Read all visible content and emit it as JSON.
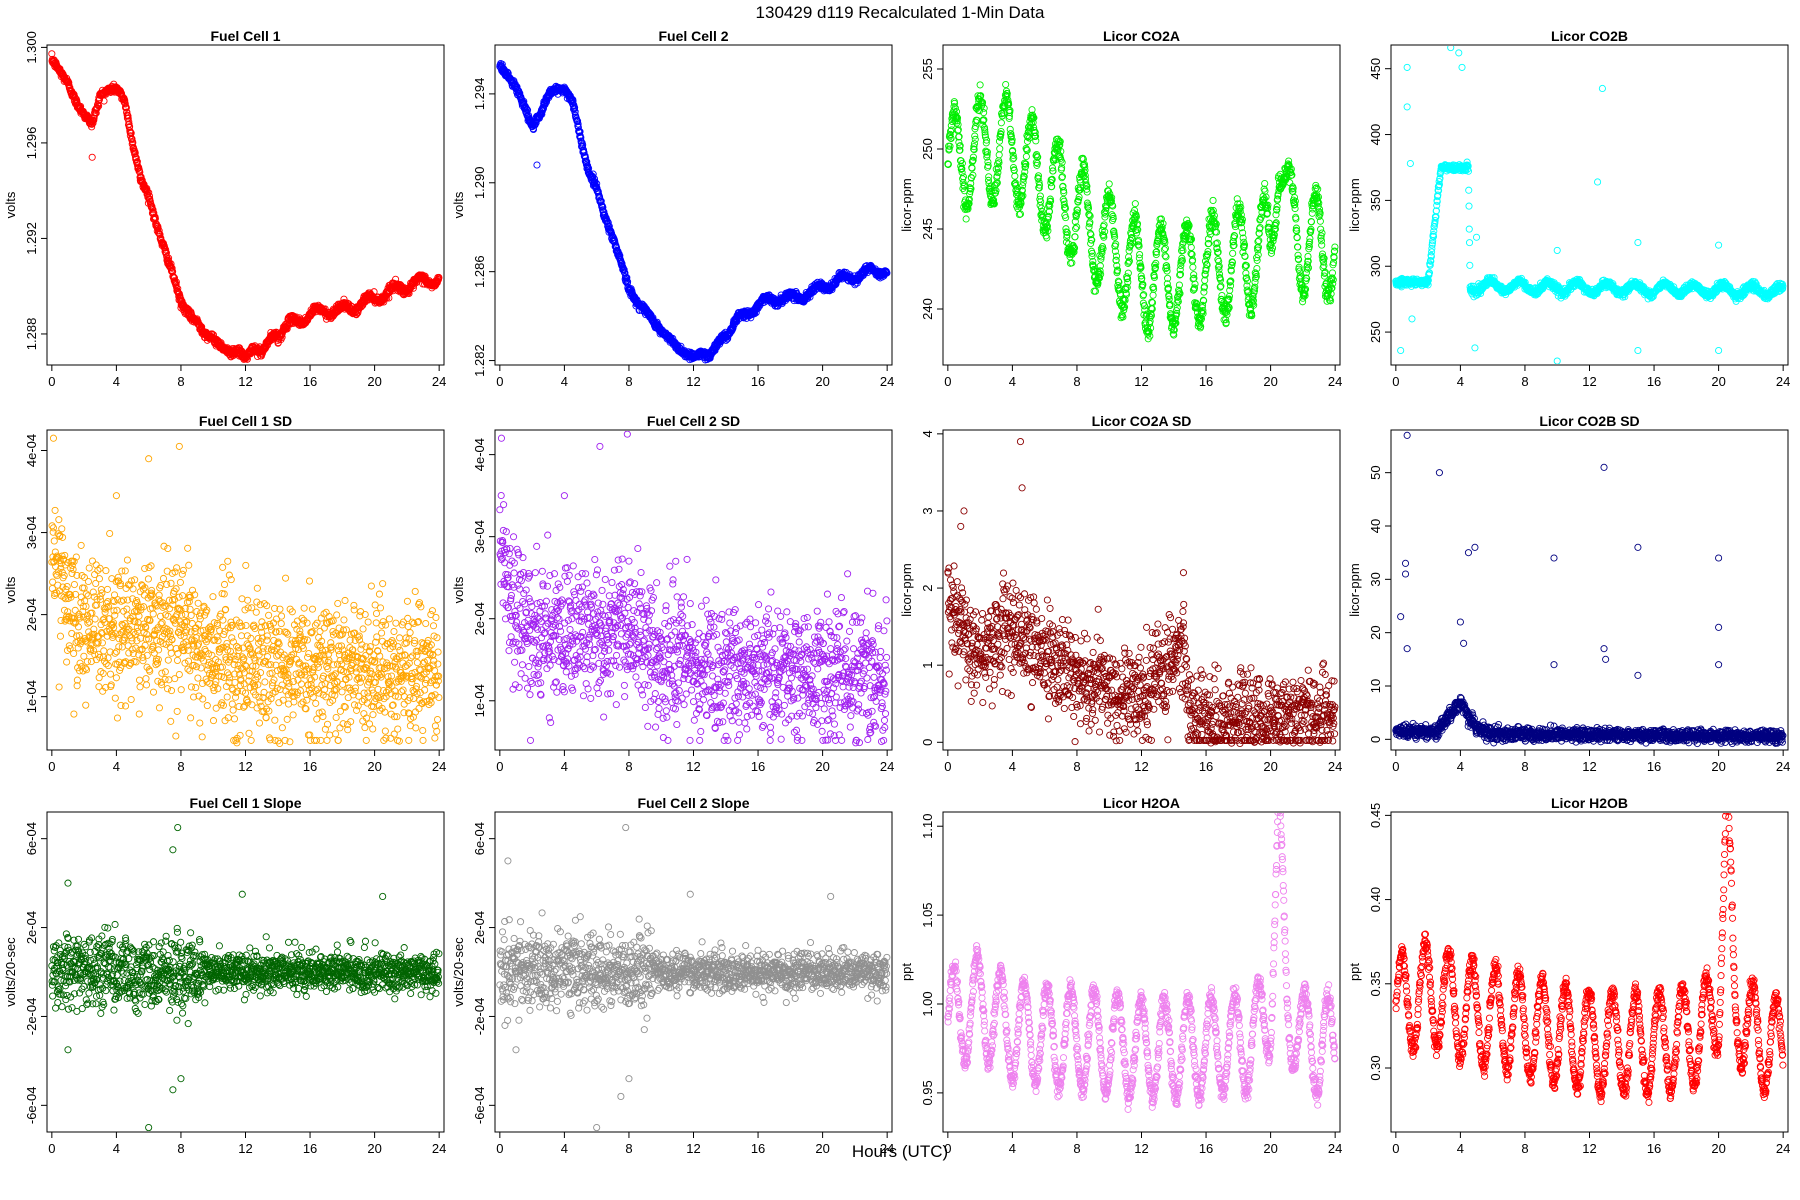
{
  "figure": {
    "title": "130429   d119   Recalculated 1-Min Data",
    "xlabel": "Hours (UTC)"
  },
  "chart_data": [
    {
      "type": "scatter",
      "title": "Fuel Cell 1",
      "ylabel": "volts",
      "color": "#ff0000",
      "xlim": [
        -0.3,
        24.3
      ],
      "ylim": [
        1.2867,
        1.3001
      ],
      "xticks": [
        0,
        4,
        8,
        12,
        16,
        20,
        24
      ],
      "yticks": [
        1.288,
        1.292,
        1.296,
        1.3
      ],
      "ytick_labels": [
        "1.288",
        "1.292",
        "1.296",
        "1.300"
      ],
      "profile": {
        "x": [
          0,
          0.5,
          1,
          1.5,
          2,
          2.5,
          3,
          3.5,
          4,
          4.5,
          5,
          5.5,
          6,
          6.5,
          7,
          7.5,
          8,
          8.5,
          9,
          9.5,
          10,
          10.5,
          11,
          11.5,
          12,
          12.5,
          13,
          13.5,
          14,
          15,
          16,
          17,
          18,
          19,
          20,
          21,
          22,
          23,
          24
        ],
        "y": [
          1.2995,
          1.299,
          1.2985,
          1.2977,
          1.2972,
          1.2968,
          1.298,
          1.2982,
          1.2983,
          1.2978,
          1.296,
          1.2945,
          1.2938,
          1.2925,
          1.2915,
          1.2905,
          1.2893,
          1.2888,
          1.2885,
          1.288,
          1.2878,
          1.2875,
          1.2872,
          1.2873,
          1.287,
          1.2874,
          1.2872,
          1.2878,
          1.288,
          1.2885,
          1.2888,
          1.289,
          1.289,
          1.2892,
          1.2895,
          1.2898,
          1.29,
          1.2902,
          1.2903
        ],
        "noise": 0.00012,
        "osc_amp": 0.0002,
        "osc_period": 1.6,
        "osc_start": 14,
        "outliers": [
          [
            2.5,
            1.2954
          ]
        ]
      }
    },
    {
      "type": "scatter",
      "title": "Fuel Cell 2",
      "ylabel": "volts",
      "color": "#0000ff",
      "xlim": [
        -0.3,
        24.3
      ],
      "ylim": [
        1.2818,
        1.2962
      ],
      "xticks": [
        0,
        4,
        8,
        12,
        16,
        20,
        24
      ],
      "yticks": [
        1.282,
        1.286,
        1.29,
        1.294
      ],
      "ytick_labels": [
        "1.282",
        "1.286",
        "1.290",
        "1.294"
      ],
      "profile": {
        "x": [
          0,
          0.5,
          1,
          1.5,
          2,
          2.5,
          3,
          3.5,
          4,
          4.5,
          5,
          5.5,
          6,
          6.5,
          7,
          7.5,
          8,
          8.5,
          9,
          9.5,
          10,
          10.5,
          11,
          11.5,
          12,
          12.5,
          13,
          13.5,
          14,
          15,
          16,
          17,
          18,
          19,
          20,
          21,
          22,
          23,
          24
        ],
        "y": [
          1.2953,
          1.2948,
          1.2943,
          1.2935,
          1.2925,
          1.293,
          1.294,
          1.2942,
          1.2942,
          1.2937,
          1.292,
          1.2905,
          1.2898,
          1.2885,
          1.2875,
          1.2865,
          1.2852,
          1.2846,
          1.2843,
          1.2838,
          1.2833,
          1.283,
          1.2826,
          1.2823,
          1.2822,
          1.2823,
          1.2822,
          1.2828,
          1.2832,
          1.284,
          1.2845,
          1.2848,
          1.2848,
          1.285,
          1.2853,
          1.2856,
          1.2858,
          1.286,
          1.2861
        ],
        "noise": 0.00012,
        "osc_amp": 0.0002,
        "osc_period": 1.6,
        "osc_start": 14,
        "outliers": [
          [
            2.3,
            1.2908
          ]
        ]
      }
    },
    {
      "type": "scatter",
      "title": "Licor CO2A",
      "ylabel": "licor-ppm",
      "color": "#00ee00",
      "xlim": [
        -0.3,
        24.3
      ],
      "ylim": [
        236.5,
        256.5
      ],
      "xticks": [
        0,
        4,
        8,
        12,
        16,
        20,
        24
      ],
      "yticks": [
        240,
        245,
        250,
        255
      ],
      "ytick_labels": [
        "240",
        "245",
        "250",
        "255"
      ],
      "profile": {
        "x": [
          0,
          2,
          4,
          6,
          8,
          10,
          12,
          14,
          16,
          18,
          20,
          20.5,
          21,
          22,
          24
        ],
        "y": [
          249,
          250,
          250,
          248,
          246,
          244,
          242,
          242,
          242.5,
          243,
          244,
          251,
          246,
          244,
          244
        ],
        "noise": 0.5,
        "osc_amp": 3.2,
        "osc_period": 1.6,
        "osc_start": 0,
        "outliers": []
      }
    },
    {
      "type": "scatter",
      "title": "Licor CO2B",
      "ylabel": "licor-ppm",
      "color": "#00ffff",
      "xlim": [
        -0.3,
        24.3
      ],
      "ylim": [
        225,
        468
      ],
      "xticks": [
        0,
        4,
        8,
        12,
        16,
        20,
        24
      ],
      "yticks": [
        250,
        300,
        350,
        400,
        450
      ],
      "ytick_labels": [
        "250",
        "300",
        "350",
        "400",
        "450"
      ],
      "profile": {
        "x": [
          0,
          2,
          2.8,
          4.5,
          4.6,
          24
        ],
        "y": [
          288,
          288,
          375,
          375,
          285,
          281
        ],
        "noise": 2,
        "osc_amp": 4,
        "osc_period": 1.8,
        "osc_start": 4.6,
        "outliers": [
          [
            0.3,
            236
          ],
          [
            0.7,
            451
          ],
          [
            0.7,
            421
          ],
          [
            0.9,
            378
          ],
          [
            3.4,
            466
          ],
          [
            3.9,
            462
          ],
          [
            4.1,
            451
          ],
          [
            12.8,
            435
          ],
          [
            12.5,
            364
          ],
          [
            10,
            228
          ],
          [
            10,
            312
          ],
          [
            15,
            236
          ],
          [
            15,
            318
          ],
          [
            20,
            236
          ],
          [
            20,
            316
          ],
          [
            4.9,
            238
          ],
          [
            5,
            322
          ],
          [
            0.5,
            290
          ],
          [
            1,
            260
          ]
        ]
      }
    },
    {
      "type": "scatter",
      "title": "Fuel Cell 1 SD",
      "ylabel": "volts",
      "color": "#ffa500",
      "xlim": [
        -0.3,
        24.3
      ],
      "ylim": [
        3.5e-05,
        0.000425
      ],
      "xticks": [
        0,
        4,
        8,
        12,
        16,
        20,
        24
      ],
      "yticks": [
        0.0001,
        0.0002,
        0.0003,
        0.0004
      ],
      "ytick_labels": [
        "1e-04",
        "2e-04",
        "3e-04",
        "4e-04"
      ],
      "profile": {
        "x": [
          0,
          1,
          2,
          4,
          8,
          9.5,
          12,
          24
        ],
        "y": [
          0.00028,
          0.00021,
          0.00018,
          0.00018,
          0.00019,
          0.00015,
          0.00014,
          0.00013
        ],
        "noise": 4e-05,
        "osc_amp": 0,
        "osc_period": 1,
        "osc_start": 24,
        "outliers": [
          [
            0.1,
            0.000415
          ],
          [
            6,
            0.00039
          ],
          [
            7.9,
            0.000405
          ],
          [
            4,
            0.000345
          ],
          [
            10.9,
            0.000265
          ],
          [
            20.3,
            0.000225
          ]
        ]
      }
    },
    {
      "type": "scatter",
      "title": "Fuel Cell 2 SD",
      "ylabel": "volts",
      "color": "#a020f0",
      "xlim": [
        -0.3,
        24.3
      ],
      "ylim": [
        4e-05,
        0.00043
      ],
      "xticks": [
        0,
        4,
        8,
        12,
        16,
        20,
        24
      ],
      "yticks": [
        0.0001,
        0.0002,
        0.0003,
        0.0004
      ],
      "ytick_labels": [
        "1e-04",
        "2e-04",
        "3e-04",
        "4e-04"
      ],
      "profile": {
        "x": [
          0,
          1,
          2,
          4,
          8,
          9.5,
          12,
          24
        ],
        "y": [
          0.00029,
          0.00021,
          0.00018,
          0.00018,
          0.00019,
          0.00015,
          0.00014,
          0.00013
        ],
        "noise": 4e-05,
        "osc_amp": 0,
        "osc_period": 1,
        "osc_start": 24,
        "outliers": [
          [
            0.1,
            0.00042
          ],
          [
            6.2,
            0.00041
          ],
          [
            7.9,
            0.000425
          ],
          [
            4,
            0.00035
          ],
          [
            10.9,
            0.00027
          ],
          [
            20.3,
            0.00023
          ]
        ]
      }
    },
    {
      "type": "scatter",
      "title": "Licor CO2A SD",
      "ylabel": "licor-ppm",
      "color": "#8b0000",
      "xlim": [
        -0.3,
        24.3
      ],
      "ylim": [
        -0.1,
        4.05
      ],
      "xticks": [
        0,
        4,
        8,
        12,
        16,
        20,
        24
      ],
      "yticks": [
        0,
        1,
        2,
        3,
        4
      ],
      "ytick_labels": [
        "0",
        "1",
        "2",
        "3",
        "4"
      ],
      "profile": {
        "x": [
          0,
          1,
          2,
          4,
          5,
          8,
          12,
          13,
          14.5,
          15,
          16,
          24
        ],
        "y": [
          1.8,
          1.5,
          1.2,
          1.5,
          1.3,
          0.8,
          0.6,
          0.8,
          1.2,
          0.4,
          0.3,
          0.35
        ],
        "noise": 0.3,
        "osc_amp": 0,
        "osc_period": 1,
        "osc_start": 24,
        "outliers": [
          [
            4.5,
            3.9
          ],
          [
            1,
            3
          ],
          [
            4.6,
            3.3
          ],
          [
            14.6,
            2.2
          ],
          [
            0.8,
            2.8
          ]
        ]
      }
    },
    {
      "type": "scatter",
      "title": "Licor CO2B SD",
      "ylabel": "licor-ppm",
      "color": "#000080",
      "xlim": [
        -0.3,
        24.3
      ],
      "ylim": [
        -2,
        58
      ],
      "xticks": [
        0,
        4,
        8,
        12,
        16,
        20,
        24
      ],
      "yticks": [
        0,
        10,
        20,
        30,
        40,
        50
      ],
      "ytick_labels": [
        "0",
        "10",
        "20",
        "30",
        "40",
        "50"
      ],
      "profile": {
        "x": [
          0,
          2.5,
          3,
          4,
          5,
          6,
          24
        ],
        "y": [
          1.5,
          1.5,
          3,
          7,
          2,
          1,
          0.5
        ],
        "noise": 0.6,
        "osc_amp": 0,
        "osc_period": 1,
        "osc_start": 24,
        "outliers": [
          [
            0.7,
            57
          ],
          [
            2.7,
            50
          ],
          [
            12.9,
            51
          ],
          [
            0.3,
            23
          ],
          [
            0.6,
            33
          ],
          [
            0.6,
            31
          ],
          [
            0.7,
            17
          ],
          [
            4,
            22
          ],
          [
            4.2,
            18
          ],
          [
            4.9,
            36
          ],
          [
            4.5,
            35
          ],
          [
            9.8,
            34
          ],
          [
            15,
            36
          ],
          [
            20,
            34
          ],
          [
            20,
            21
          ],
          [
            20,
            14
          ],
          [
            12.9,
            17
          ],
          [
            13,
            15
          ],
          [
            9.8,
            14
          ],
          [
            15,
            12
          ]
        ]
      }
    },
    {
      "type": "scatter",
      "title": "Fuel Cell 1 Slope",
      "ylabel": "volts/20-sec",
      "color": "#006400",
      "xlim": [
        -0.3,
        24.3
      ],
      "ylim": [
        -0.00072,
        0.00072
      ],
      "xticks": [
        0,
        4,
        8,
        12,
        16,
        20,
        24
      ],
      "yticks": [
        -0.0006,
        -0.0002,
        0.0002,
        0.0006
      ],
      "ytick_labels": [
        "-6e-04",
        "-2e-04",
        "2e-04",
        "6e-04"
      ],
      "profile": {
        "x": [
          0,
          9,
          9.5,
          24
        ],
        "y": [
          0,
          0,
          0,
          0
        ],
        "noise": 0.00012,
        "noise_late": 6e-05,
        "osc_amp": 0,
        "osc_period": 1,
        "osc_start": 24,
        "outliers": [
          [
            7.8,
            0.00065
          ],
          [
            6,
            -0.0007
          ],
          [
            7.5,
            0.00055
          ],
          [
            7.5,
            -0.00053
          ],
          [
            1,
            0.0004
          ],
          [
            11.8,
            0.00035
          ],
          [
            20.5,
            0.00034
          ],
          [
            1,
            -0.00035
          ],
          [
            8,
            -0.00048
          ]
        ]
      }
    },
    {
      "type": "scatter",
      "title": "Fuel Cell 2 Slope",
      "ylabel": "volts/20-sec",
      "color": "#909090",
      "xlim": [
        -0.3,
        24.3
      ],
      "ylim": [
        -0.00072,
        0.00072
      ],
      "xticks": [
        0,
        4,
        8,
        12,
        16,
        20,
        24
      ],
      "yticks": [
        -0.0006,
        -0.0002,
        0.0002,
        0.0006
      ],
      "ytick_labels": [
        "-6e-04",
        "-2e-04",
        "2e-04",
        "6e-04"
      ],
      "profile": {
        "x": [
          0,
          9,
          9.5,
          24
        ],
        "y": [
          0,
          0,
          0,
          0
        ],
        "noise": 0.00012,
        "noise_late": 6e-05,
        "osc_amp": 0,
        "osc_period": 1,
        "osc_start": 24,
        "outliers": [
          [
            7.8,
            0.00065
          ],
          [
            6,
            -0.0007
          ],
          [
            7.5,
            -0.00056
          ],
          [
            0.5,
            0.0005
          ],
          [
            11.8,
            0.00035
          ],
          [
            20.5,
            0.00034
          ],
          [
            1,
            -0.00035
          ],
          [
            8,
            -0.00048
          ]
        ]
      }
    },
    {
      "type": "scatter",
      "title": "Licor H2OA",
      "ylabel": "ppt",
      "color": "#ee82ee",
      "xlim": [
        -0.3,
        24.3
      ],
      "ylim": [
        0.928,
        1.108
      ],
      "xticks": [
        0,
        4,
        8,
        12,
        16,
        20,
        24
      ],
      "yticks": [
        0.95,
        1.0,
        1.05,
        1.1
      ],
      "ytick_labels": [
        "0.95",
        "1.00",
        "1.05",
        "1.10"
      ],
      "profile": {
        "x": [
          0,
          2,
          4,
          8,
          12,
          16,
          19,
          20,
          20.5,
          21,
          22,
          24
        ],
        "y": [
          0.99,
          1.0,
          0.985,
          0.98,
          0.975,
          0.975,
          0.98,
          1.0,
          1.1,
          1.0,
          0.98,
          0.975
        ],
        "noise": 0.004,
        "osc_amp": 0.028,
        "osc_period": 1.45,
        "osc_start": 0,
        "outliers": []
      }
    },
    {
      "type": "scatter",
      "title": "Licor H2OB",
      "ylabel": "ppt",
      "color": "#ff0000",
      "xlim": [
        -0.3,
        24.3
      ],
      "ylim": [
        0.262,
        0.452
      ],
      "xticks": [
        0,
        4,
        8,
        12,
        16,
        20,
        24
      ],
      "yticks": [
        0.3,
        0.35,
        0.4,
        0.45
      ],
      "ytick_labels": [
        "0.30",
        "0.35",
        "0.40",
        "0.45"
      ],
      "profile": {
        "x": [
          0,
          2,
          4,
          8,
          12,
          16,
          19,
          20,
          20.5,
          21,
          22,
          24
        ],
        "y": [
          0.335,
          0.345,
          0.335,
          0.325,
          0.315,
          0.315,
          0.32,
          0.34,
          0.445,
          0.34,
          0.32,
          0.31
        ],
        "noise": 0.004,
        "osc_amp": 0.03,
        "osc_period": 1.45,
        "osc_start": 0,
        "outliers": []
      }
    }
  ]
}
